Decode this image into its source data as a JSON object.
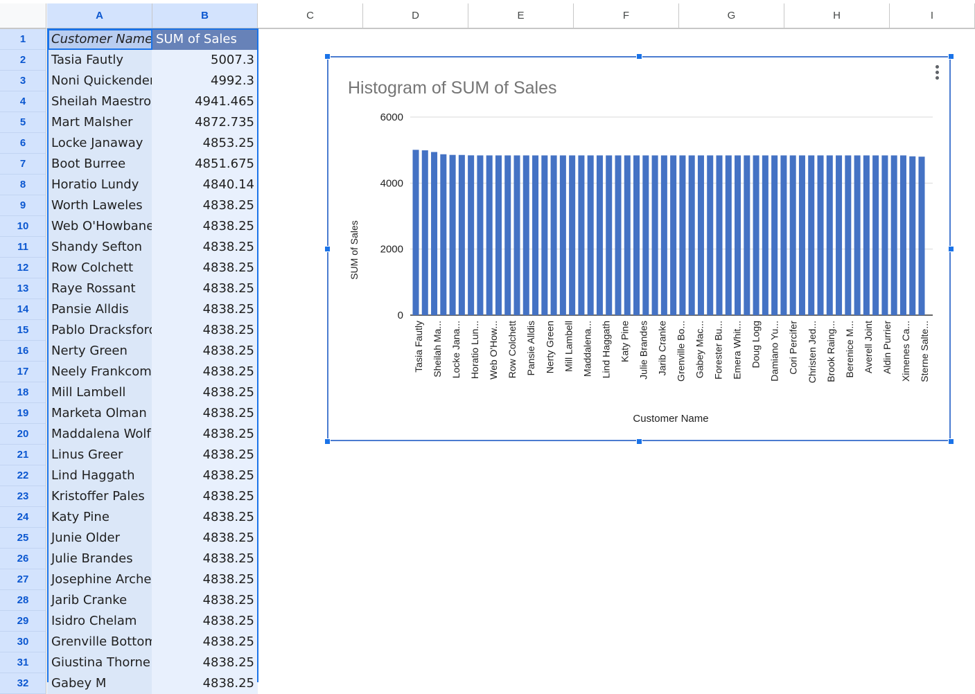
{
  "sheet": {
    "columns": [
      "A",
      "B",
      "C",
      "D",
      "E",
      "F",
      "G",
      "H",
      "I"
    ],
    "header": {
      "customer": "Customer Name",
      "sales": "SUM of Sales"
    },
    "rows": [
      {
        "num": "1"
      },
      {
        "num": "2",
        "name": "Tasia Fautly",
        "value": "5007.3"
      },
      {
        "num": "3",
        "name": "Noni Quickenden",
        "value": "4992.3"
      },
      {
        "num": "4",
        "name": "Sheilah Maestro",
        "value": "4941.465"
      },
      {
        "num": "5",
        "name": "Mart Malsher",
        "value": "4872.735"
      },
      {
        "num": "6",
        "name": "Locke Janaway",
        "value": "4853.25"
      },
      {
        "num": "7",
        "name": "Boot Burree",
        "value": "4851.675"
      },
      {
        "num": "8",
        "name": "Horatio Lundy",
        "value": "4840.14"
      },
      {
        "num": "9",
        "name": "Worth Laweles",
        "value": "4838.25"
      },
      {
        "num": "10",
        "name": "Web O'Howbane",
        "value": "4838.25"
      },
      {
        "num": "11",
        "name": "Shandy Sefton",
        "value": "4838.25"
      },
      {
        "num": "12",
        "name": "Row Colchett",
        "value": "4838.25"
      },
      {
        "num": "13",
        "name": "Raye Rossant",
        "value": "4838.25"
      },
      {
        "num": "14",
        "name": "Pansie Alldis",
        "value": "4838.25"
      },
      {
        "num": "15",
        "name": "Pablo Dracksford",
        "value": "4838.25"
      },
      {
        "num": "16",
        "name": "Nerty Green",
        "value": "4838.25"
      },
      {
        "num": "17",
        "name": "Neely Frankcombe",
        "value": "4838.25"
      },
      {
        "num": "18",
        "name": "Mill Lambell",
        "value": "4838.25"
      },
      {
        "num": "19",
        "name": "Marketa Olman",
        "value": "4838.25"
      },
      {
        "num": "20",
        "name": "Maddalena Wolf",
        "value": "4838.25"
      },
      {
        "num": "21",
        "name": "Linus Greer",
        "value": "4838.25"
      },
      {
        "num": "22",
        "name": "Lind Haggath",
        "value": "4838.25"
      },
      {
        "num": "23",
        "name": "Kristoffer Pales",
        "value": "4838.25"
      },
      {
        "num": "24",
        "name": "Katy Pine",
        "value": "4838.25"
      },
      {
        "num": "25",
        "name": "Junie Older",
        "value": "4838.25"
      },
      {
        "num": "26",
        "name": "Julie Brandes",
        "value": "4838.25"
      },
      {
        "num": "27",
        "name": "Josephine Archer",
        "value": "4838.25"
      },
      {
        "num": "28",
        "name": "Jarib Cranke",
        "value": "4838.25"
      },
      {
        "num": "29",
        "name": "Isidro Chelam",
        "value": "4838.25"
      },
      {
        "num": "30",
        "name": "Grenville Bottom",
        "value": "4838.25"
      },
      {
        "num": "31",
        "name": "Giustina Thorne",
        "value": "4838.25"
      },
      {
        "num": "32",
        "name": "Gabey M",
        "value": "4838.25"
      }
    ]
  },
  "colors": {
    "bar": "#4472c4",
    "selection": "#1a73e8",
    "header_dark": "#6782b8"
  },
  "chart_data": {
    "type": "bar",
    "title": "Histogram of SUM of Sales",
    "xlabel": "Customer Name",
    "ylabel": "SUM of Sales",
    "ylim": [
      0,
      6000
    ],
    "yticks": [
      0,
      2000,
      4000,
      6000
    ],
    "grid": true,
    "category_labels": [
      "Tasia Fautly",
      "Sheilah Ma...",
      "Locke Jana...",
      "Horatio Lun...",
      "Web O'How...",
      "Row Colchett",
      "Pansie Alldis",
      "Nerty Green",
      "Mill Lambell",
      "Maddalena...",
      "Lind Haggath",
      "Katy Pine",
      "Julie Brandes",
      "Jarib Cranke",
      "Grenville Bo...",
      "Gabey Mac...",
      "Forester Bu...",
      "Emera Whit...",
      "Doug Logg",
      "Damiano Yu...",
      "Cori Percifer",
      "Christen Jed...",
      "Brook Raing...",
      "Berenice M...",
      "Averell Joint",
      "Aldin Purrier",
      "Ximenes Ca...",
      "Sterne Salte..."
    ],
    "values": [
      5007.3,
      4992.3,
      4941.465,
      4872.735,
      4853.25,
      4851.675,
      4840.14,
      4838.25,
      4838.25,
      4838.25,
      4838.25,
      4838.25,
      4838.25,
      4838.25,
      4838.25,
      4838.25,
      4838.25,
      4838.25,
      4838.25,
      4838.25,
      4838.25,
      4838.25,
      4838.25,
      4838.25,
      4838.25,
      4838.25,
      4838.25,
      4838.25,
      4838.25,
      4838.25,
      4838.25,
      4838.25,
      4838.25,
      4838.25,
      4838.25,
      4838.25,
      4838.25,
      4838.25,
      4838.25,
      4838.25,
      4838.25,
      4838.25,
      4838.25,
      4838.25,
      4838.25,
      4838.25,
      4838.25,
      4838.25,
      4838.25,
      4838.25,
      4838.25,
      4838.25,
      4838.25,
      4838.25,
      4810,
      4800
    ]
  }
}
